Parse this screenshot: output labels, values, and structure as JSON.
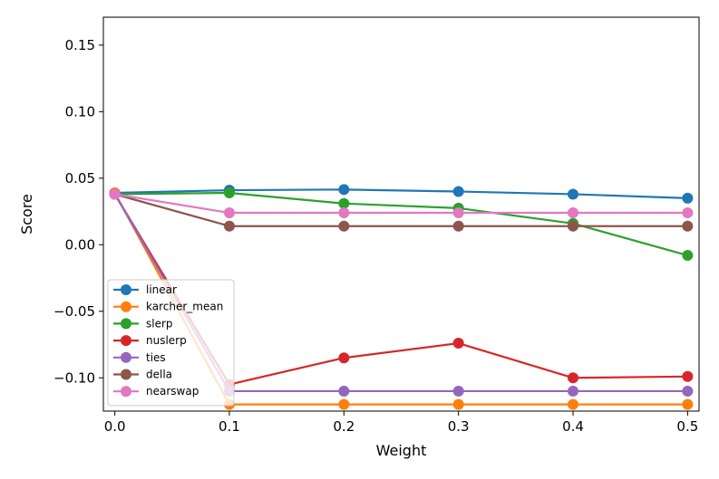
{
  "chart_data": {
    "type": "line",
    "title": "",
    "xlabel": "Weight",
    "ylabel": "Score",
    "x": [
      0.0,
      0.1,
      0.2,
      0.3,
      0.4,
      0.5
    ],
    "x_tick_labels": [
      "0.0",
      "0.1",
      "0.2",
      "0.3",
      "0.4",
      "0.5"
    ],
    "y_ticks": [
      -0.1,
      -0.05,
      0.0,
      0.05,
      0.1,
      0.15
    ],
    "y_tick_labels": [
      "−0.10",
      "−0.05",
      "0.00",
      "0.05",
      "0.10",
      "0.15"
    ],
    "xlim": [
      -0.01,
      0.51
    ],
    "ylim": [
      -0.125,
      0.171
    ],
    "grid": false,
    "legend_position": "bottom-left",
    "series": [
      {
        "name": "linear",
        "color": "#1f77b4",
        "values": [
          0.039,
          0.041,
          0.0415,
          0.04,
          0.038,
          0.035
        ]
      },
      {
        "name": "karcher_mean",
        "color": "#ff7f0e",
        "values": [
          0.039,
          -0.12,
          -0.12,
          -0.12,
          -0.12,
          -0.12
        ]
      },
      {
        "name": "slerp",
        "color": "#2ca02c",
        "values": [
          0.038,
          0.039,
          0.031,
          0.0275,
          0.016,
          -0.008
        ]
      },
      {
        "name": "nuslerp",
        "color": "#d62728",
        "values": [
          0.038,
          -0.105,
          -0.085,
          -0.074,
          -0.1,
          -0.099
        ]
      },
      {
        "name": "ties",
        "color": "#9467bd",
        "values": [
          0.038,
          -0.11,
          -0.11,
          -0.11,
          -0.11,
          -0.11
        ]
      },
      {
        "name": "della",
        "color": "#8c564b",
        "values": [
          0.038,
          0.014,
          0.014,
          0.014,
          0.014,
          0.014
        ]
      },
      {
        "name": "nearswap",
        "color": "#e377c2",
        "values": [
          0.038,
          0.024,
          0.024,
          0.024,
          0.024,
          0.024
        ]
      }
    ]
  }
}
